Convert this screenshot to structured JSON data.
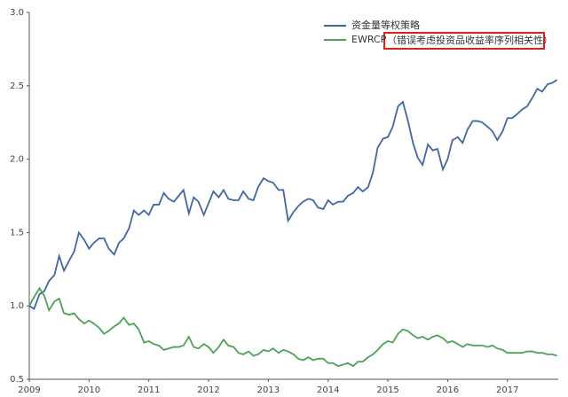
{
  "chart_data": {
    "type": "line",
    "x": [
      2009,
      2009.08,
      2009.17,
      2009.25,
      2009.33,
      2009.42,
      2009.5,
      2009.58,
      2009.67,
      2009.75,
      2009.83,
      2009.92,
      2010,
      2010.08,
      2010.17,
      2010.25,
      2010.33,
      2010.42,
      2010.5,
      2010.58,
      2010.67,
      2010.75,
      2010.83,
      2010.92,
      2011,
      2011.08,
      2011.17,
      2011.25,
      2011.33,
      2011.42,
      2011.5,
      2011.58,
      2011.67,
      2011.75,
      2011.83,
      2011.92,
      2012,
      2012.08,
      2012.17,
      2012.25,
      2012.33,
      2012.42,
      2012.5,
      2012.58,
      2012.67,
      2012.75,
      2012.83,
      2012.92,
      2013,
      2013.08,
      2013.17,
      2013.25,
      2013.33,
      2013.42,
      2013.5,
      2013.58,
      2013.67,
      2013.75,
      2013.83,
      2013.92,
      2014,
      2014.08,
      2014.17,
      2014.25,
      2014.33,
      2014.42,
      2014.5,
      2014.58,
      2014.67,
      2014.75,
      2014.83,
      2014.92,
      2015,
      2015.08,
      2015.17,
      2015.25,
      2015.33,
      2015.42,
      2015.5,
      2015.58,
      2015.67,
      2015.75,
      2015.83,
      2015.92,
      2016,
      2016.08,
      2016.17,
      2016.25,
      2016.33,
      2016.42,
      2016.5,
      2016.58,
      2016.67,
      2016.75,
      2016.83,
      2016.92,
      2017,
      2017.08,
      2017.17,
      2017.25,
      2017.33,
      2017.42,
      2017.5,
      2017.58,
      2017.67,
      2017.75,
      2017.83
    ],
    "series": [
      {
        "name": "资金量等权策略",
        "color": "#3f67a6",
        "values": [
          1.0,
          0.98,
          1.08,
          1.1,
          1.17,
          1.21,
          1.34,
          1.24,
          1.31,
          1.37,
          1.5,
          1.45,
          1.39,
          1.43,
          1.46,
          1.46,
          1.39,
          1.35,
          1.43,
          1.46,
          1.53,
          1.65,
          1.62,
          1.65,
          1.62,
          1.69,
          1.69,
          1.77,
          1.73,
          1.71,
          1.75,
          1.79,
          1.63,
          1.74,
          1.71,
          1.62,
          1.7,
          1.78,
          1.74,
          1.79,
          1.73,
          1.72,
          1.72,
          1.78,
          1.73,
          1.72,
          1.81,
          1.87,
          1.85,
          1.84,
          1.79,
          1.79,
          1.58,
          1.64,
          1.68,
          1.71,
          1.73,
          1.72,
          1.67,
          1.66,
          1.72,
          1.69,
          1.71,
          1.71,
          1.75,
          1.77,
          1.81,
          1.78,
          1.81,
          1.91,
          2.08,
          2.14,
          2.15,
          2.22,
          2.36,
          2.39,
          2.27,
          2.11,
          2.01,
          1.96,
          2.1,
          2.06,
          2.07,
          1.93,
          2.0,
          2.13,
          2.15,
          2.11,
          2.2,
          2.26,
          2.26,
          2.25,
          2.22,
          2.19,
          2.13,
          2.19,
          2.28,
          2.28,
          2.31,
          2.34,
          2.36,
          2.42,
          2.48,
          2.46,
          2.51,
          2.52,
          2.54
        ]
      },
      {
        "name": "EWRCP",
        "color": "#4ca356",
        "values": [
          1.0,
          1.06,
          1.12,
          1.07,
          0.97,
          1.03,
          1.05,
          0.95,
          0.94,
          0.95,
          0.91,
          0.88,
          0.9,
          0.88,
          0.85,
          0.81,
          0.83,
          0.86,
          0.88,
          0.92,
          0.87,
          0.88,
          0.84,
          0.75,
          0.76,
          0.74,
          0.73,
          0.7,
          0.71,
          0.72,
          0.72,
          0.73,
          0.79,
          0.72,
          0.71,
          0.74,
          0.72,
          0.68,
          0.72,
          0.77,
          0.73,
          0.72,
          0.68,
          0.67,
          0.69,
          0.66,
          0.67,
          0.7,
          0.69,
          0.71,
          0.68,
          0.7,
          0.69,
          0.67,
          0.64,
          0.63,
          0.65,
          0.63,
          0.64,
          0.64,
          0.61,
          0.61,
          0.59,
          0.6,
          0.61,
          0.59,
          0.62,
          0.62,
          0.65,
          0.67,
          0.7,
          0.74,
          0.76,
          0.75,
          0.81,
          0.84,
          0.83,
          0.8,
          0.78,
          0.79,
          0.77,
          0.79,
          0.8,
          0.78,
          0.75,
          0.76,
          0.74,
          0.72,
          0.74,
          0.73,
          0.73,
          0.73,
          0.72,
          0.73,
          0.71,
          0.7,
          0.68,
          0.68,
          0.68,
          0.68,
          0.69,
          0.69,
          0.68,
          0.68,
          0.67,
          0.67,
          0.66
        ]
      }
    ],
    "annotation": "（错误考虑投资品收益率序列相关性）",
    "xlim": [
      2009,
      2017.85
    ],
    "xticks": [
      2009,
      2010,
      2011,
      2012,
      2013,
      2014,
      2015,
      2016,
      2017
    ],
    "ylim": [
      0.5,
      3.0
    ],
    "yticks": [
      0.5,
      {
        "value": 1,
        "label": "1.0"
      },
      1.5,
      {
        "value": 2,
        "label": "2.0"
      },
      2.5,
      {
        "value": 3,
        "label": "3.0"
      }
    ]
  }
}
